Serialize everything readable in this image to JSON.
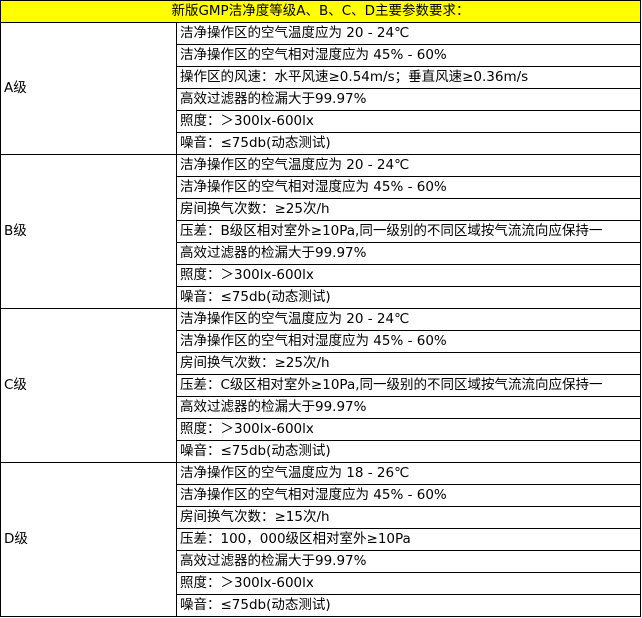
{
  "title": "新版GMP洁净度等级A、B、C、D主要参数要求：",
  "header_color": "#ffff00",
  "grades": [
    {
      "name": "A级",
      "items": [
        "洁净操作区的空气温度应为 20 - 24℃",
        "洁净操作区的空气相对湿度应为 45% - 60%",
        "操作区的风速：水平风速≥0.54m/s；垂直风速≥0.36m/s",
        "高效过滤器的检漏大于99.97%",
        "照度：＞300lx-600lx",
        "噪音：≤75db(动态测试)"
      ]
    },
    {
      "name": "B级",
      "items": [
        "洁净操作区的空气温度应为 20 - 24℃",
        "洁净操作区的空气相对湿度应为 45% - 60%",
        "房间换气次数：≥25次/h",
        "压差：B级区相对室外≥10Pa,同一级别的不同区域按气流流向应保持一",
        "高效过滤器的检漏大于99.97%",
        "照度：＞300lx-600lx",
        "噪音：≤75db(动态测试)"
      ]
    },
    {
      "name": "C级",
      "items": [
        "洁净操作区的空气温度应为 20 - 24℃",
        "洁净操作区的空气相对湿度应为 45% - 60%",
        "房间换气次数：≥25次/h",
        "压差：C级区相对室外≥10Pa,同一级别的不同区域按气流流向应保持一",
        "高效过滤器的检漏大于99.97%",
        "照度：＞300lx-600lx",
        "噪音：≤75db(动态测试)"
      ]
    },
    {
      "name": "D级",
      "items": [
        "洁净操作区的空气温度应为 18 - 26℃",
        "洁净操作区的空气相对湿度应为 45% - 60%",
        "房间换气次数：≥15次/h",
        "压差：100，000级区相对室外≥10Pa",
        "高效过滤器的检漏大于99.97%",
        "照度：＞300lx-600lx",
        "噪音：≤75db(动态测试)"
      ]
    }
  ]
}
